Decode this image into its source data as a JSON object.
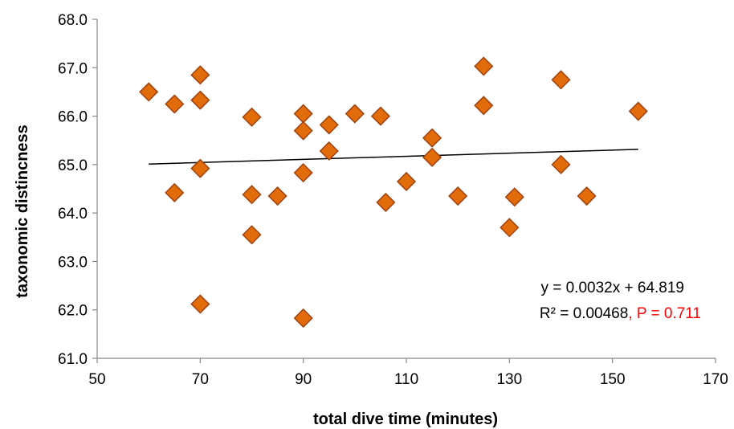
{
  "chart_data": {
    "type": "scatter",
    "title": "",
    "xlabel": "total dive time (minutes)",
    "ylabel": "taxonomic distincness",
    "xlim": [
      50,
      170
    ],
    "ylim": [
      61.0,
      68.0
    ],
    "x_ticks": [
      "50",
      "70",
      "90",
      "110",
      "130",
      "150",
      "170"
    ],
    "y_ticks": [
      "61.0",
      "62.0",
      "63.0",
      "64.0",
      "65.0",
      "66.0",
      "67.0",
      "68.0"
    ],
    "grid": false,
    "legend": "none",
    "marker": "diamond",
    "marker_color": "#E36C0A",
    "marker_edge": "#A0410D",
    "points": [
      {
        "x": 60,
        "y": 66.5
      },
      {
        "x": 65,
        "y": 66.25
      },
      {
        "x": 65,
        "y": 64.42
      },
      {
        "x": 70,
        "y": 66.85
      },
      {
        "x": 70,
        "y": 66.33
      },
      {
        "x": 70,
        "y": 64.92
      },
      {
        "x": 70,
        "y": 62.12
      },
      {
        "x": 80,
        "y": 65.98
      },
      {
        "x": 80,
        "y": 64.38
      },
      {
        "x": 80,
        "y": 63.55
      },
      {
        "x": 85,
        "y": 64.35
      },
      {
        "x": 90,
        "y": 66.05
      },
      {
        "x": 90,
        "y": 65.7
      },
      {
        "x": 90,
        "y": 64.83
      },
      {
        "x": 90,
        "y": 61.83
      },
      {
        "x": 95,
        "y": 65.82
      },
      {
        "x": 95,
        "y": 65.28
      },
      {
        "x": 100,
        "y": 66.05
      },
      {
        "x": 105,
        "y": 66.0
      },
      {
        "x": 106,
        "y": 64.22
      },
      {
        "x": 110,
        "y": 64.65
      },
      {
        "x": 115,
        "y": 65.55
      },
      {
        "x": 115,
        "y": 65.15
      },
      {
        "x": 120,
        "y": 64.35
      },
      {
        "x": 125,
        "y": 67.03
      },
      {
        "x": 125,
        "y": 66.22
      },
      {
        "x": 130,
        "y": 63.7
      },
      {
        "x": 131,
        "y": 64.33
      },
      {
        "x": 140,
        "y": 66.75
      },
      {
        "x": 140,
        "y": 65.0
      },
      {
        "x": 145,
        "y": 64.35
      },
      {
        "x": 155,
        "y": 66.1
      }
    ],
    "trendline": {
      "x_range": [
        60,
        155
      ],
      "slope": 0.0032,
      "intercept": 64.819,
      "color": "#000000",
      "equation_text": "y = 0.0032x + 64.819",
      "r2_text": "R² = 0.00468",
      "p_text": ", P = 0.711",
      "p_color": "#FF0000"
    }
  }
}
